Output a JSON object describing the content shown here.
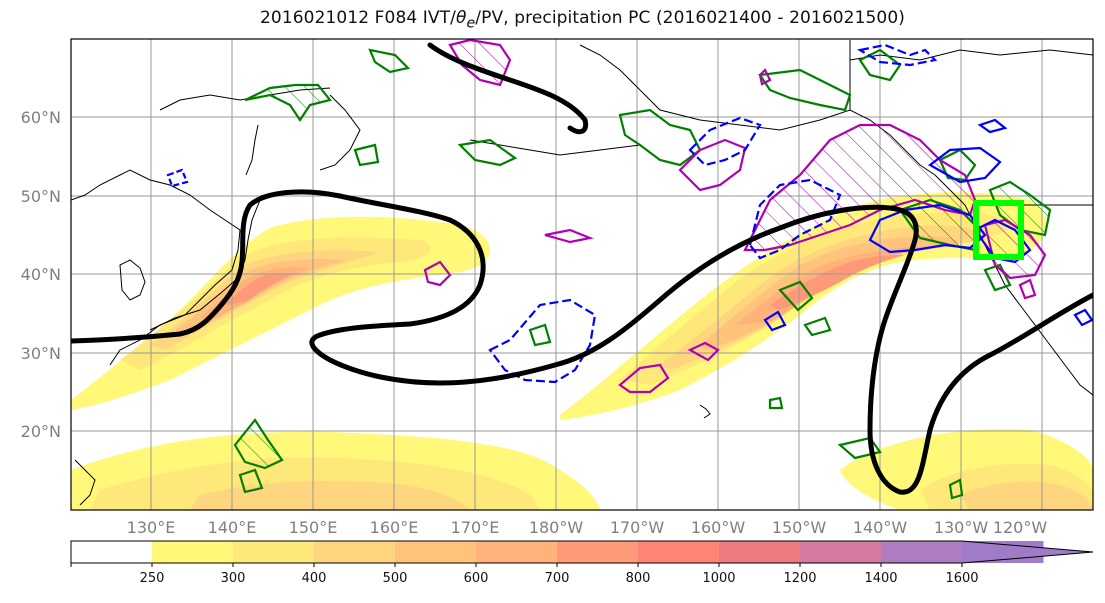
{
  "title": {
    "prefix": "2016021012 F084 IVT/",
    "theta": "θ",
    "theta_sub": "e",
    "suffix": "/PV, precipitation PC (2016021400 - 2016021500)"
  },
  "map": {
    "lat_labels": [
      "60°N",
      "50°N",
      "40°N",
      "30°N",
      "20°N"
    ],
    "lon_labels": [
      "130°E",
      "140°E",
      "150°E",
      "160°E",
      "170°E",
      "180°W",
      "170°W",
      "160°W",
      "150°W",
      "140°W",
      "130°W",
      "120°W"
    ],
    "colors": {
      "pv_contour": "#000000",
      "theta_e_positive": "#0000ff",
      "theta_e_negative": "#0000ff",
      "precip_contour": "#008000",
      "precip_negative": "#b000b0",
      "target_box": "#00ff00"
    }
  },
  "colorbar": {
    "levels": [
      "250",
      "300",
      "400",
      "500",
      "600",
      "700",
      "800",
      "1000",
      "1200",
      "1400",
      "1600"
    ],
    "colors": [
      "#ffffff",
      "#fff878",
      "#ffe87a",
      "#ffd580",
      "#ffc37c",
      "#ffb27a",
      "#ff9a78",
      "#ff8478",
      "#ee7a80",
      "#d47aa0",
      "#b07cc0",
      "#a07cc8"
    ]
  }
}
